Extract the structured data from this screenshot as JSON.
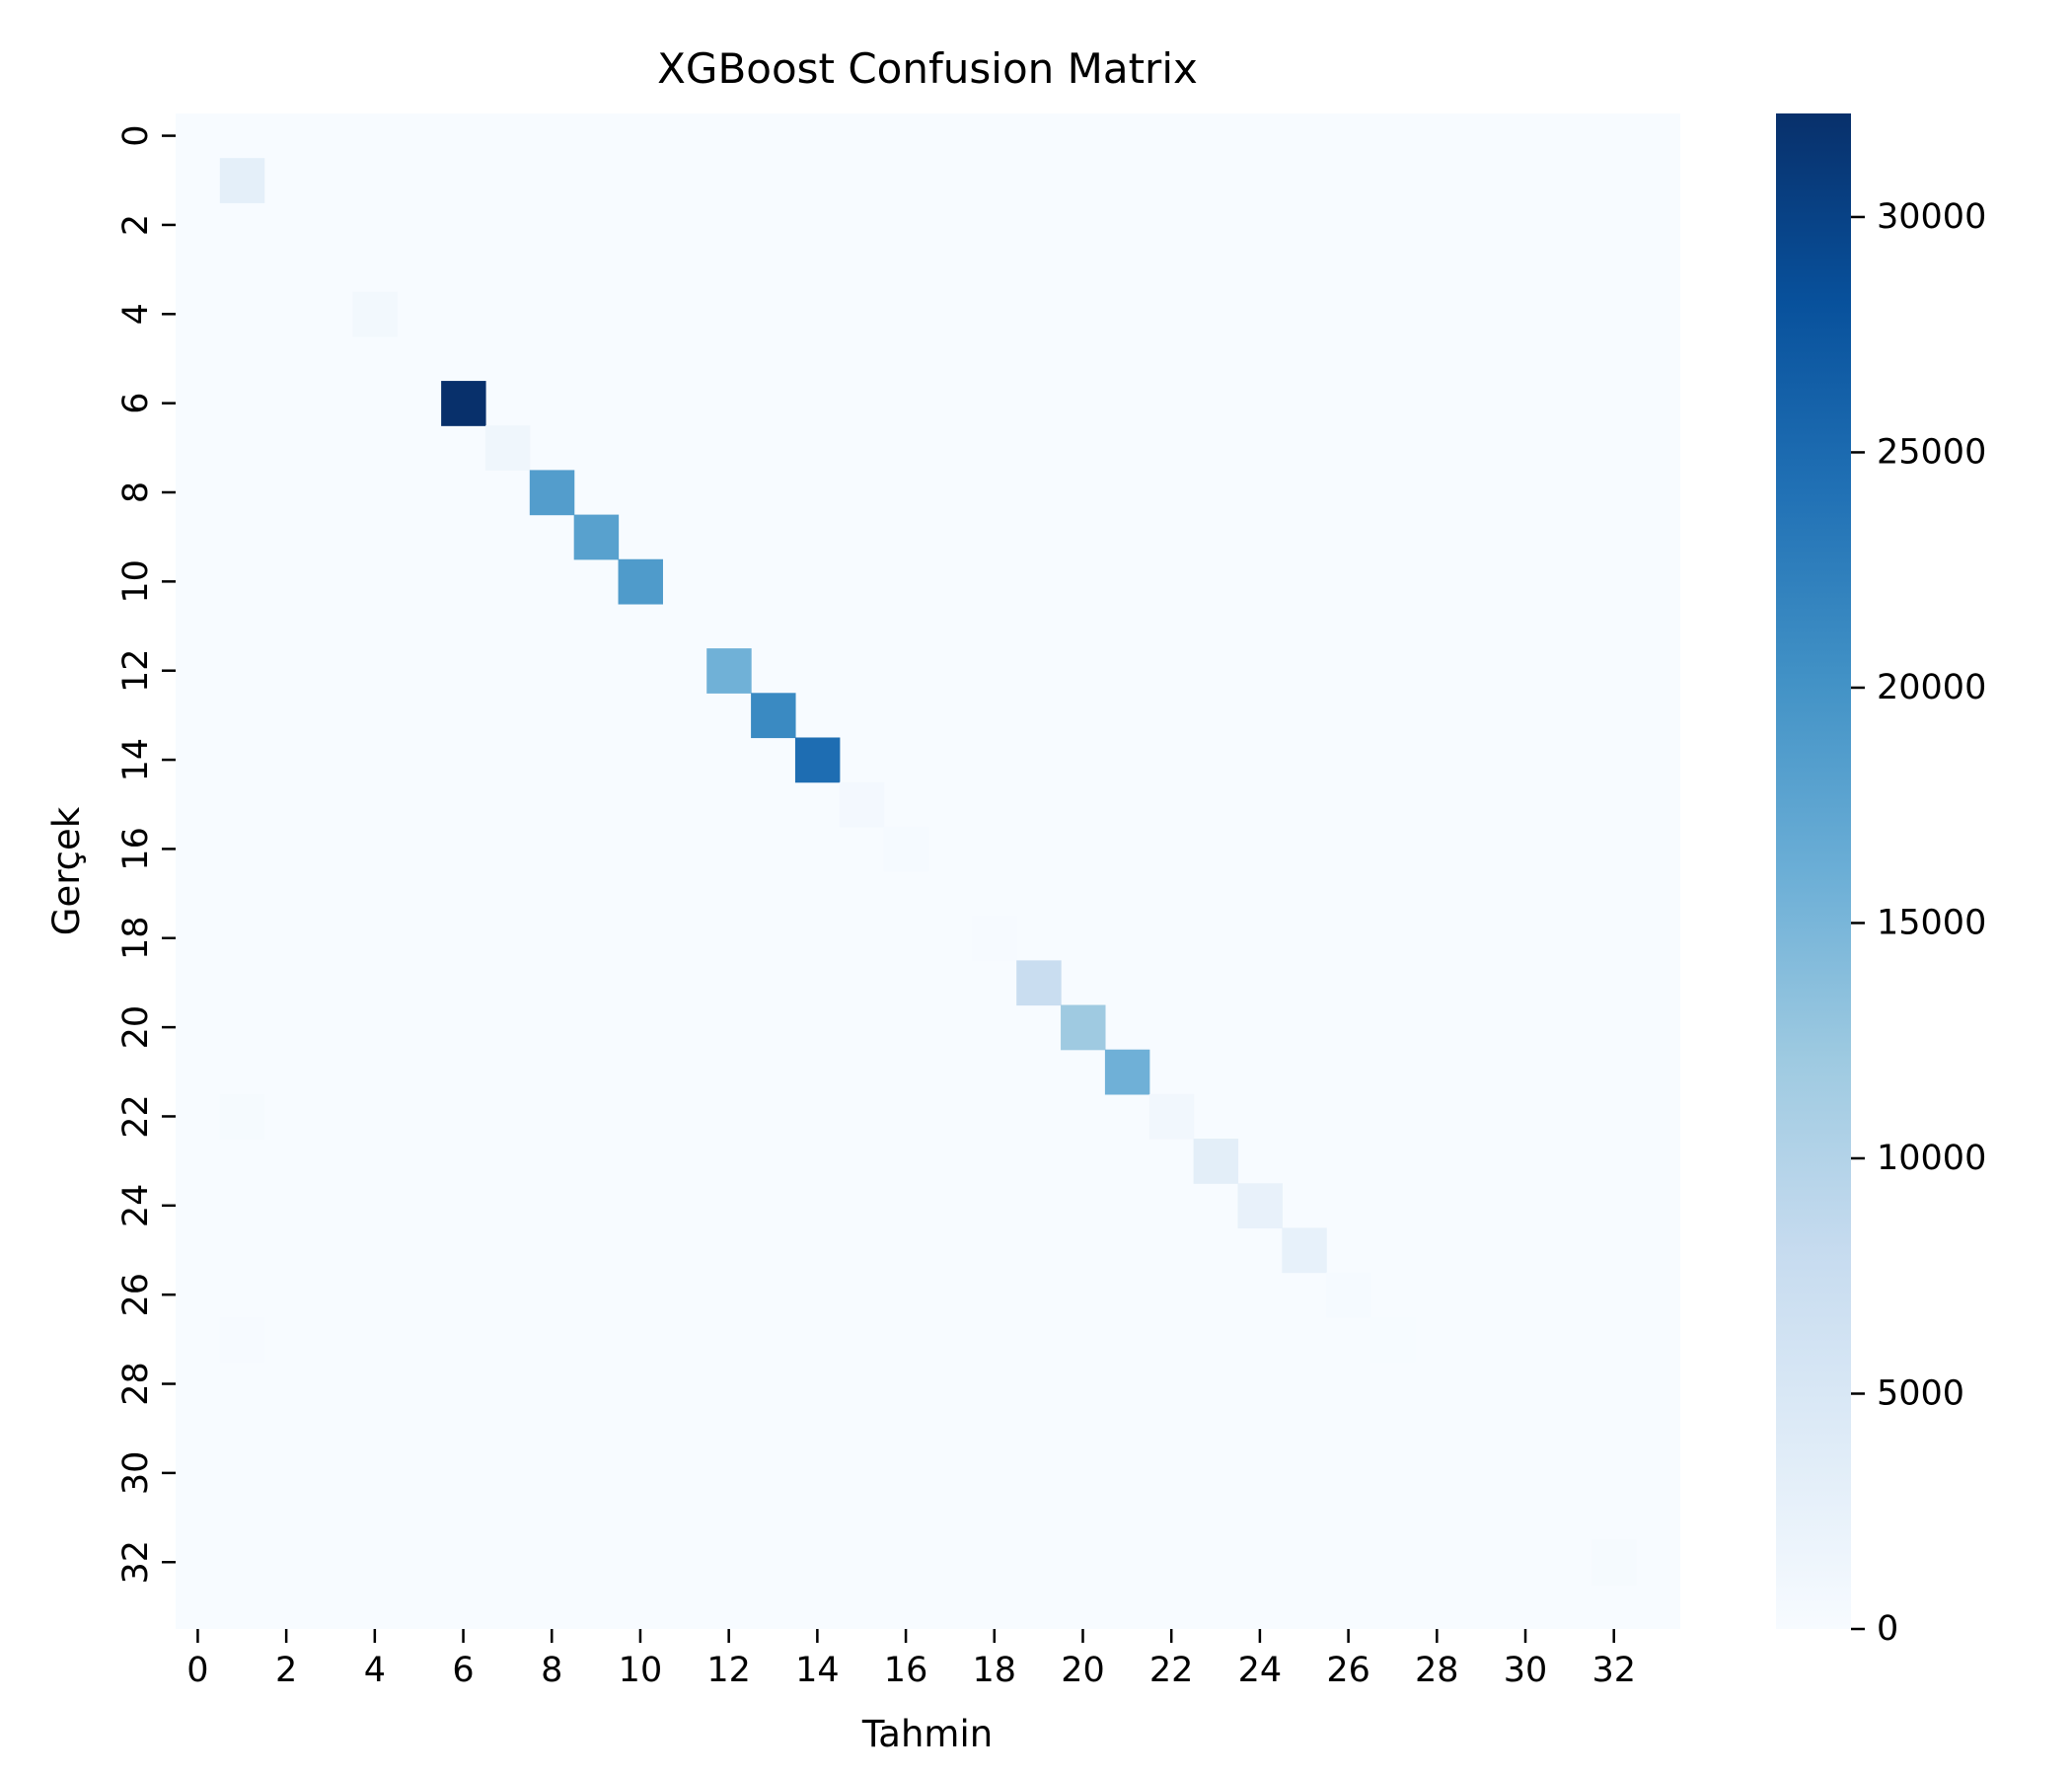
{
  "chart_data": {
    "type": "heatmap",
    "title": "XGBoost Confusion Matrix",
    "xlabel": "Tahmin",
    "ylabel": "Gerçek",
    "n_classes": 34,
    "x_ticks": [
      0,
      2,
      4,
      6,
      8,
      10,
      12,
      14,
      16,
      18,
      20,
      22,
      24,
      26,
      28,
      30,
      32
    ],
    "y_ticks": [
      0,
      2,
      4,
      6,
      8,
      10,
      12,
      14,
      16,
      18,
      20,
      22,
      24,
      26,
      28,
      30,
      32
    ],
    "colormap": "Blues",
    "colorbar": {
      "vmin": 0,
      "vmax": 32200,
      "ticks": [
        0,
        5000,
        10000,
        15000,
        20000,
        25000,
        30000
      ]
    },
    "background_value": 0,
    "cells": [
      {
        "row": 1,
        "col": 1,
        "value": 3000
      },
      {
        "row": 4,
        "col": 4,
        "value": 800
      },
      {
        "row": 6,
        "col": 6,
        "value": 32200
      },
      {
        "row": 7,
        "col": 7,
        "value": 1300
      },
      {
        "row": 8,
        "col": 8,
        "value": 18500
      },
      {
        "row": 9,
        "col": 9,
        "value": 18000
      },
      {
        "row": 10,
        "col": 10,
        "value": 18800
      },
      {
        "row": 12,
        "col": 12,
        "value": 15700
      },
      {
        "row": 13,
        "col": 13,
        "value": 21100
      },
      {
        "row": 14,
        "col": 14,
        "value": 24700
      },
      {
        "row": 15,
        "col": 15,
        "value": 700
      },
      {
        "row": 16,
        "col": 16,
        "value": 250
      },
      {
        "row": 18,
        "col": 18,
        "value": 200
      },
      {
        "row": 19,
        "col": 19,
        "value": 7600
      },
      {
        "row": 20,
        "col": 20,
        "value": 12000
      },
      {
        "row": 21,
        "col": 21,
        "value": 15800
      },
      {
        "row": 22,
        "col": 1,
        "value": 350
      },
      {
        "row": 22,
        "col": 22,
        "value": 900
      },
      {
        "row": 23,
        "col": 23,
        "value": 3300
      },
      {
        "row": 24,
        "col": 24,
        "value": 2400
      },
      {
        "row": 25,
        "col": 25,
        "value": 2500
      },
      {
        "row": 26,
        "col": 26,
        "value": 250
      },
      {
        "row": 27,
        "col": 1,
        "value": 150
      },
      {
        "row": 27,
        "col": 27,
        "value": 100
      },
      {
        "row": 29,
        "col": 29,
        "value": 60
      },
      {
        "row": 32,
        "col": 32,
        "value": 300
      }
    ]
  }
}
